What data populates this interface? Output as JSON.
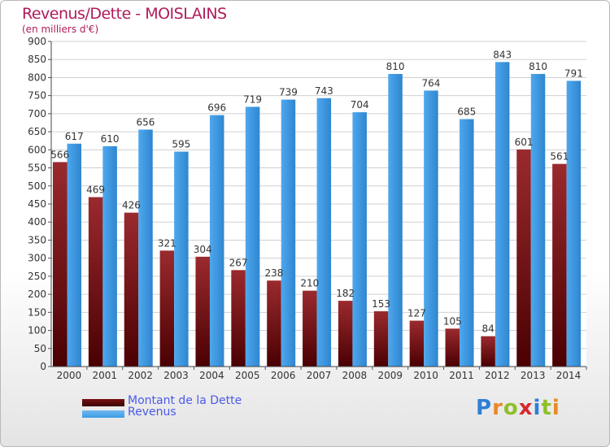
{
  "title": "Revenus/Dette - MOISLAINS",
  "subtitle": "(en milliers d'€)",
  "brand": {
    "letters": [
      "P",
      "r",
      "o",
      "x",
      "i",
      "t",
      "i"
    ],
    "colors": [
      "#2f7fd6",
      "#e98a22",
      "#8fbf2a",
      "#d7282e",
      "#2f7fd6",
      "#8fbf2a",
      "#e98a22"
    ]
  },
  "legend": {
    "position": "bottom-left",
    "items": [
      {
        "label": "Montant de la Dette",
        "color": "#7a0f12"
      },
      {
        "label": "Revenus",
        "color": "#3d9be6"
      }
    ]
  },
  "chart_data": {
    "type": "bar",
    "categories": [
      "2000",
      "2001",
      "2002",
      "2003",
      "2004",
      "2005",
      "2006",
      "2007",
      "2008",
      "2009",
      "2010",
      "2011",
      "2012",
      "2013",
      "2014"
    ],
    "series": [
      {
        "name": "Montant de la Dette",
        "color": "#7a0f12",
        "values": [
          566,
          469,
          426,
          321,
          304,
          267,
          238,
          210,
          182,
          153,
          127,
          105,
          84,
          601,
          561
        ]
      },
      {
        "name": "Revenus",
        "color": "#3d9be6",
        "values": [
          617,
          610,
          656,
          595,
          696,
          719,
          739,
          743,
          704,
          810,
          764,
          685,
          843,
          810,
          791
        ]
      }
    ],
    "yticks": [
      0,
      50,
      100,
      150,
      200,
      250,
      300,
      350,
      400,
      450,
      500,
      550,
      600,
      650,
      700,
      750,
      800,
      850,
      900
    ],
    "ylim": [
      0,
      900
    ],
    "grid": true
  }
}
